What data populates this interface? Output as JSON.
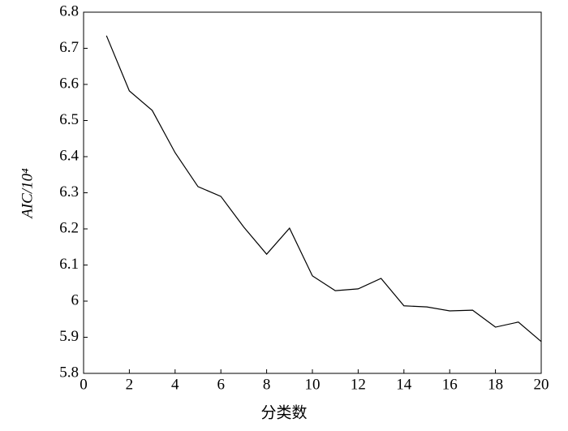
{
  "chart_data": {
    "type": "line",
    "x_label": "分类数",
    "y_label": "AIC/10⁴",
    "x": [
      1,
      2,
      3,
      4,
      5,
      6,
      7,
      8,
      9,
      10,
      11,
      12,
      13,
      14,
      15,
      16,
      17,
      18,
      19,
      20
    ],
    "series": [
      {
        "color": "#000000",
        "values": [
          6.735,
          6.582,
          6.528,
          6.411,
          6.317,
          6.29,
          6.205,
          6.13,
          6.202,
          6.07,
          6.029,
          6.034,
          6.063,
          5.987,
          5.984,
          5.973,
          5.975,
          5.928,
          5.942,
          5.888
        ]
      }
    ],
    "xlim": [
      0,
      20
    ],
    "xticks": [
      0,
      2,
      4,
      6,
      8,
      10,
      12,
      14,
      16,
      18,
      20
    ],
    "ylim": [
      5.8,
      6.8
    ],
    "yticks": [
      5.8,
      5.9,
      6,
      6.1,
      6.2,
      6.3,
      6.4,
      6.5,
      6.6,
      6.7,
      6.8
    ]
  }
}
